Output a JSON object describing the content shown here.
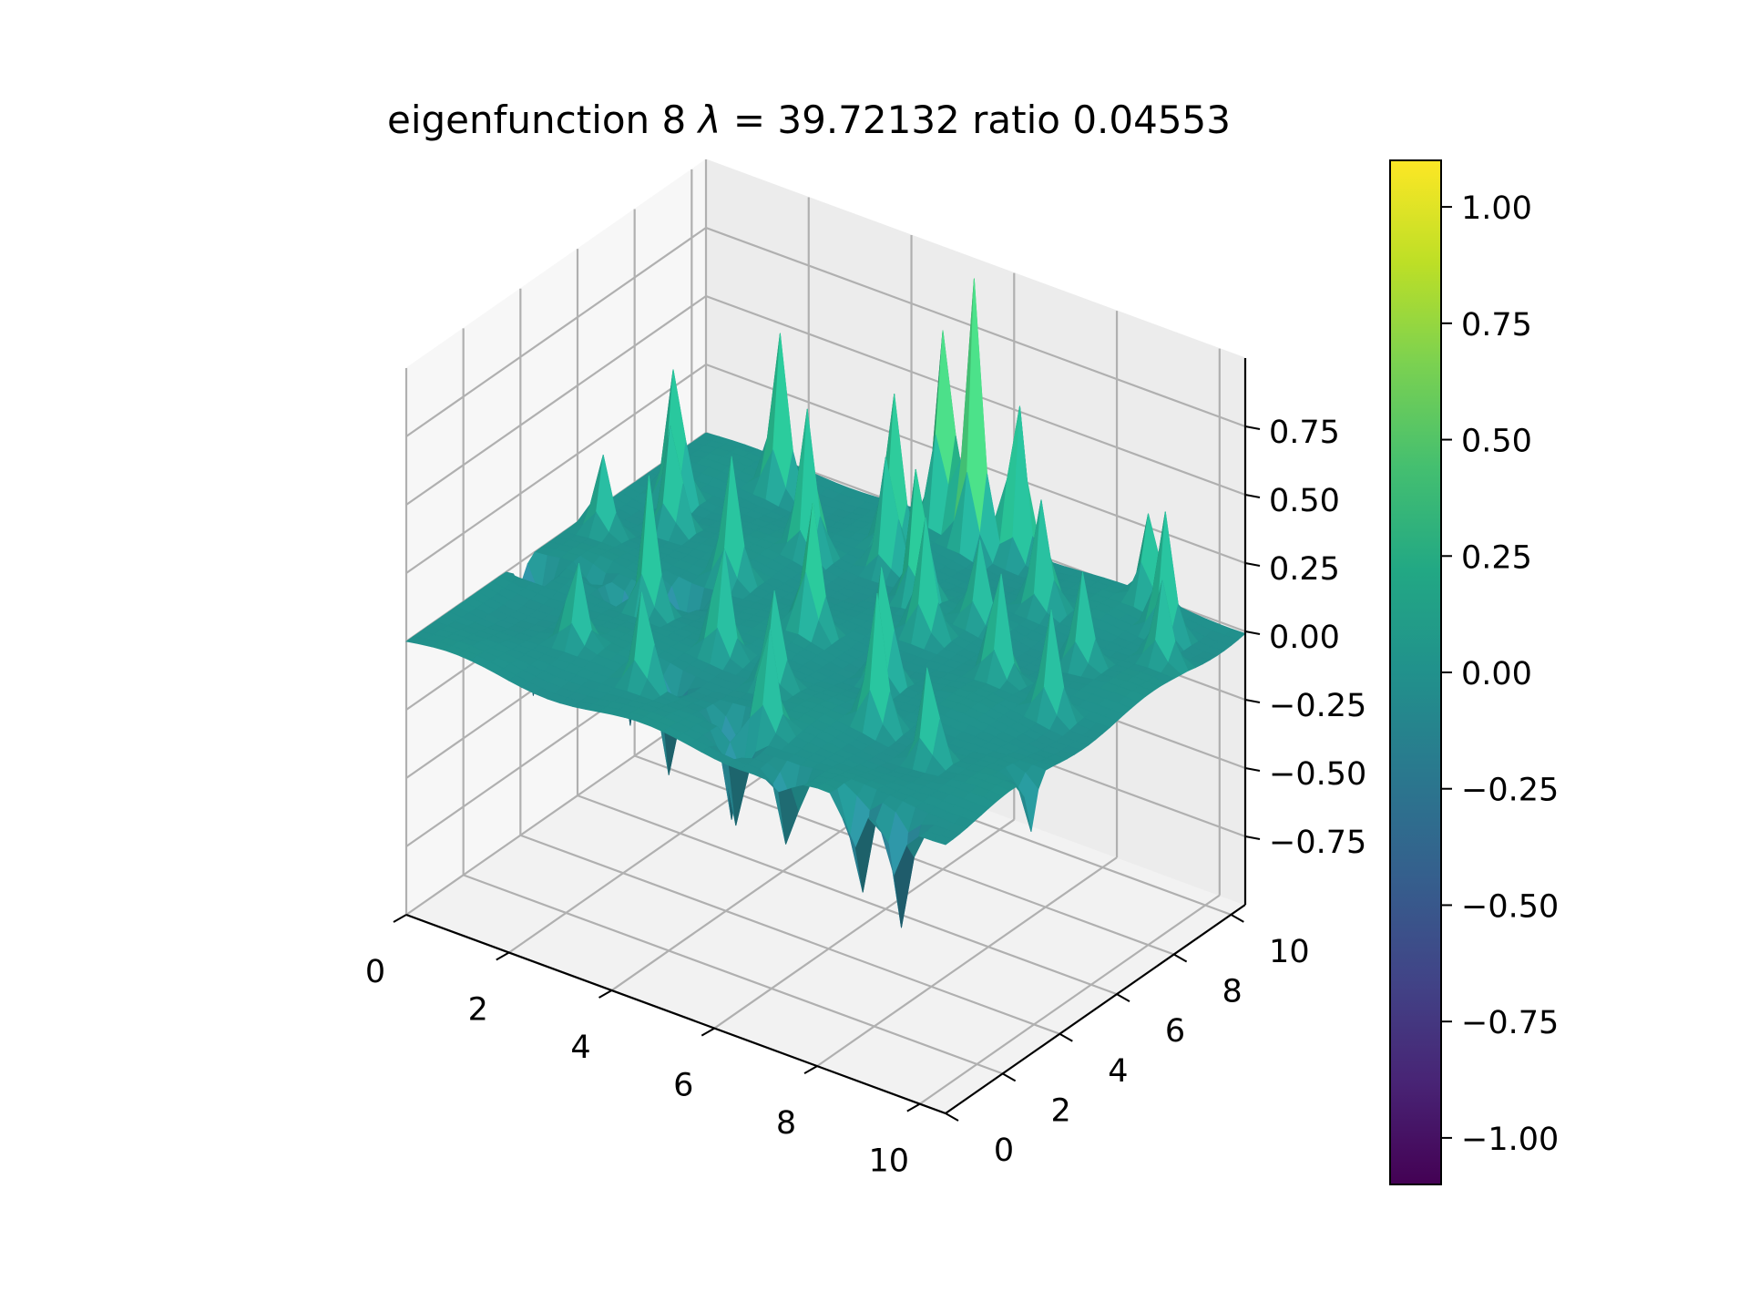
{
  "chart_data": {
    "type": "surface3d",
    "title": "eigenfunction 8  λ = 39.72132 ratio 0.04553",
    "title_parts": {
      "prefix": "eigenfunction 8  ",
      "symbol": "λ",
      "equals": " = ",
      "value": "39.72132 ratio 0.04553"
    },
    "x_ticks": [
      0,
      2,
      4,
      6,
      8,
      10
    ],
    "y_ticks": [
      0,
      2,
      4,
      6,
      8,
      10
    ],
    "z_ticks": [
      -0.75,
      -0.5,
      -0.25,
      0.0,
      0.25,
      0.5,
      0.75
    ],
    "x_tick_labels": [
      "0",
      "2",
      "4",
      "6",
      "8",
      "10"
    ],
    "y_tick_labels": [
      "0",
      "2",
      "4",
      "6",
      "8",
      "10"
    ],
    "z_tick_labels": [
      "−0.75",
      "−0.50",
      "−0.25",
      "0.00",
      "0.25",
      "0.50",
      "0.75"
    ],
    "xlim": [
      0,
      10.5
    ],
    "ylim": [
      0,
      10.5
    ],
    "zlim": [
      -1.0,
      1.0
    ],
    "colorbar": {
      "range": [
        -1.1,
        1.1
      ],
      "ticks": [
        -1.0,
        -0.75,
        -0.5,
        -0.25,
        0.0,
        0.25,
        0.5,
        0.75,
        1.0
      ],
      "tick_labels": [
        "−1.00",
        "−0.75",
        "−0.50",
        "−0.25",
        "0.00",
        "0.25",
        "0.50",
        "0.75",
        "1.00"
      ],
      "colormap": "viridis"
    },
    "grid": true,
    "peaks": [
      {
        "x": 5.5,
        "y": 10.0,
        "z": 0.98
      },
      {
        "x": 4.8,
        "y": 10.2,
        "z": 0.78
      },
      {
        "x": 6.2,
        "y": 10.3,
        "z": 0.62
      },
      {
        "x": 8.8,
        "y": 10.2,
        "z": 0.35
      },
      {
        "x": 2.0,
        "y": 9.5,
        "z": 0.58
      },
      {
        "x": 4.5,
        "y": 9.0,
        "z": 0.55
      },
      {
        "x": 3.5,
        "y": 7.8,
        "z": 0.55
      },
      {
        "x": 0.8,
        "y": 8.0,
        "z": 0.5
      },
      {
        "x": 1.3,
        "y": 7.0,
        "z": 0.4
      },
      {
        "x": 4.8,
        "y": 8.3,
        "z": 0.45
      },
      {
        "x": 5.8,
        "y": 7.5,
        "z": 0.5
      },
      {
        "x": 7.5,
        "y": 8.8,
        "z": 0.42
      },
      {
        "x": 9.5,
        "y": 9.5,
        "z": 0.45
      },
      {
        "x": 6.5,
        "y": 6.5,
        "z": 0.42
      },
      {
        "x": 8.2,
        "y": 6.0,
        "z": 0.4
      },
      {
        "x": 3.0,
        "y": 6.0,
        "z": 0.45
      },
      {
        "x": 5.0,
        "y": 5.2,
        "z": 0.48
      },
      {
        "x": 6.8,
        "y": 4.5,
        "z": 0.45
      },
      {
        "x": 9.5,
        "y": 5.5,
        "z": 0.38
      },
      {
        "x": 2.5,
        "y": 4.0,
        "z": 0.5
      },
      {
        "x": 4.2,
        "y": 3.5,
        "z": 0.4
      },
      {
        "x": 7.5,
        "y": 3.0,
        "z": 0.48
      },
      {
        "x": 8.8,
        "y": 2.5,
        "z": 0.36
      },
      {
        "x": 6.2,
        "y": 1.5,
        "z": 0.38
      },
      {
        "x": 3.8,
        "y": 1.5,
        "z": 0.35
      },
      {
        "x": 9.0,
        "y": 7.5,
        "z": 0.34
      },
      {
        "x": 1.2,
        "y": 4.5,
        "z": 0.32
      },
      {
        "x": 2.2,
        "y": 2.0,
        "z": 0.3
      },
      {
        "x": 5.5,
        "y": 3.0,
        "z": 0.35
      },
      {
        "x": 0.5,
        "y": 6.0,
        "z": 0.28
      },
      {
        "x": 7.0,
        "y": 7.5,
        "z": 0.3
      },
      {
        "x": 10.0,
        "y": 8.5,
        "z": 0.3
      }
    ],
    "troughs": [
      {
        "x": 0.3,
        "y": 4.0,
        "z": -0.5
      },
      {
        "x": 1.2,
        "y": 4.5,
        "z": -0.42
      },
      {
        "x": 2.0,
        "y": 4.2,
        "z": -0.5
      },
      {
        "x": 2.6,
        "y": 5.0,
        "z": -0.55
      },
      {
        "x": 4.0,
        "y": 2.0,
        "z": -0.35
      },
      {
        "x": 5.5,
        "y": 1.5,
        "z": -0.38
      },
      {
        "x": 6.0,
        "y": 0.8,
        "z": -0.32
      },
      {
        "x": 7.3,
        "y": 0.3,
        "z": -0.28
      },
      {
        "x": 8.7,
        "y": 0.2,
        "z": -0.38
      },
      {
        "x": 9.5,
        "y": 0.2,
        "z": -0.42
      },
      {
        "x": 10.5,
        "y": 3.0,
        "z": -0.2
      }
    ]
  }
}
